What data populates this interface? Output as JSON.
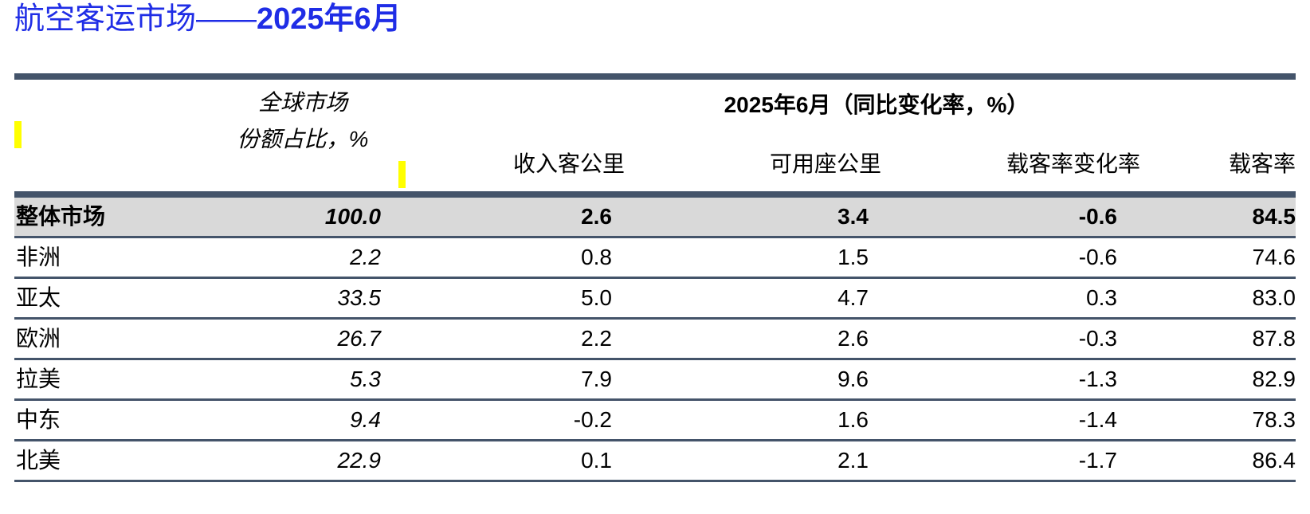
{
  "title": {
    "main": "航空客运市场——",
    "period": "2025年6月"
  },
  "header": {
    "share_line1": "全球市场",
    "share_line2": "份额占比，%",
    "period": "2025年6月（同比变化率，%）",
    "columns": [
      "收入客公里",
      "可用座公里",
      "载客率变化率",
      "载客率"
    ]
  },
  "rows": [
    {
      "region": "整体市场",
      "share": "100.0",
      "rpk": "2.6",
      "ask": "3.4",
      "plf_change": "-0.6",
      "plf": "84.5"
    },
    {
      "region": "非洲",
      "share": "2.2",
      "rpk": "0.8",
      "ask": "1.5",
      "plf_change": "-0.6",
      "plf": "74.6"
    },
    {
      "region": "亚太",
      "share": "33.5",
      "rpk": "5.0",
      "ask": "4.7",
      "plf_change": "0.3",
      "plf": "83.0"
    },
    {
      "region": "欧洲",
      "share": "26.7",
      "rpk": "2.2",
      "ask": "2.6",
      "plf_change": "-0.3",
      "plf": "87.8"
    },
    {
      "region": "拉美",
      "share": "5.3",
      "rpk": "7.9",
      "ask": "9.6",
      "plf_change": "-1.3",
      "plf": "82.9"
    },
    {
      "region": "中东",
      "share": "9.4",
      "rpk": "-0.2",
      "ask": "1.6",
      "plf_change": "-1.4",
      "plf": "78.3"
    },
    {
      "region": "北美",
      "share": "22.9",
      "rpk": "0.1",
      "ask": "2.1",
      "plf_change": "-1.7",
      "plf": "86.4"
    }
  ],
  "colors": {
    "title": "#1f2de6",
    "rule": "#44546a",
    "total_row_bg": "#d9d9d9",
    "marker": "#ffff00"
  }
}
